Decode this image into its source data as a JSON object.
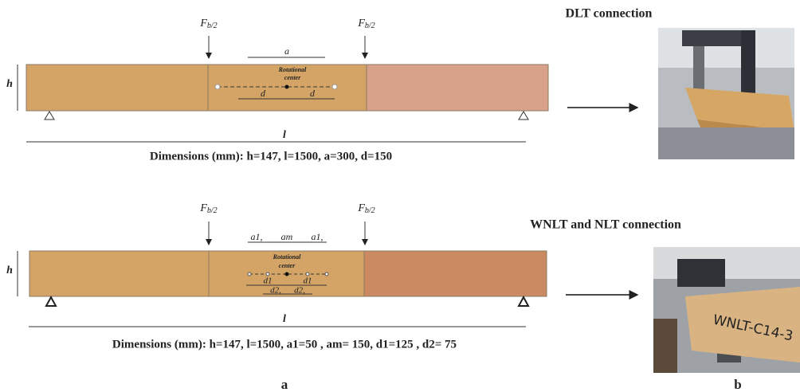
{
  "panel_a": {
    "top": {
      "force_left": {
        "main": "F",
        "sub": "b/2"
      },
      "force_right": {
        "main": "F",
        "sub": "b/2"
      },
      "dim_a": "a",
      "center": [
        "Rotational",
        "center"
      ],
      "dim_d": [
        "d",
        "d"
      ],
      "height": "h",
      "length": "l",
      "caption": "Dimensions (mm): h=147, l=1500, a=300, d=150"
    },
    "bottom": {
      "force_left": {
        "main": "F",
        "sub": "b/2"
      },
      "force_right": {
        "main": "F",
        "sub": "b/2"
      },
      "dim_a": [
        "a1,",
        "am",
        "a1,"
      ],
      "center": [
        "Rotational",
        "center"
      ],
      "dim_d1": [
        "d1",
        "d1"
      ],
      "dim_d2": [
        "d2,",
        "d2,"
      ],
      "height": "h",
      "length": "l",
      "caption": "Dimensions (mm): h=147, l=1500, a1=50 , am= 150, d1=125 , d2= 75"
    },
    "label": "a"
  },
  "panel_b": {
    "top_title": "DLT connection",
    "bottom_title": "WNLT and NLT connection",
    "specimen_text": "WNLT-C14-3",
    "label": "b"
  }
}
